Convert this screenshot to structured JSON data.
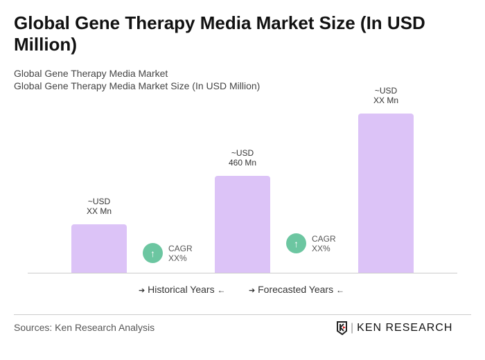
{
  "header": {
    "title": "Global Gene Therapy Media Market Size (In USD Million)",
    "subtitle1": "Global Gene Therapy Media Market",
    "subtitle2": "Global Gene Therapy Media Market Size (In USD Million)"
  },
  "chart_data": {
    "type": "bar",
    "categories": [
      "",
      "",
      ""
    ],
    "values": [
      null,
      460,
      null
    ],
    "data_labels": [
      {
        "l1": "~USD",
        "l2": "XX Mn"
      },
      {
        "l1": "~USD",
        "l2": "460 Mn"
      },
      {
        "l1": "~USD",
        "l2": "XX Mn"
      }
    ],
    "bar_color": "#dcc3f7",
    "cagr": [
      {
        "label": "CAGR",
        "value": "XX%"
      },
      {
        "label": "CAGR",
        "value": "XX%"
      }
    ],
    "cagr_color": "#6cc6a1"
  },
  "legend": {
    "historical": "Historical Years",
    "forecast": "Forecasted Years"
  },
  "footer": {
    "sources": "Sources: Ken Research Analysis",
    "logo": "KEN RESEARCH"
  }
}
